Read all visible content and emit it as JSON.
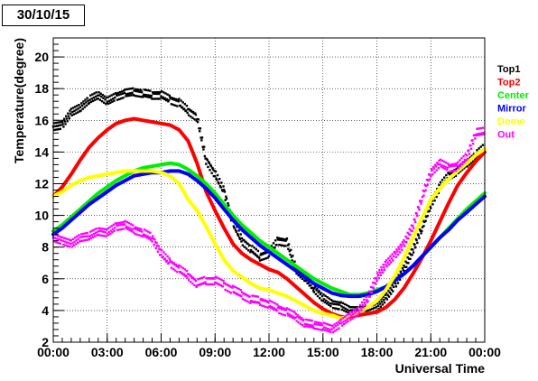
{
  "chart_data": {
    "type": "scatter",
    "title": "30/10/15",
    "xlabel": "Universal Time",
    "ylabel": "Temperature(degree)",
    "xlim": [
      0,
      24
    ],
    "ylim": [
      2,
      21.2
    ],
    "grid": true,
    "legend_position": "right",
    "x_tick_values": [
      0,
      3,
      6,
      9,
      12,
      15,
      18,
      21,
      24
    ],
    "x_tick_labels": [
      "00:00",
      "03:00",
      "06:00",
      "09:00",
      "12:00",
      "15:00",
      "18:00",
      "21:00",
      "00:00"
    ],
    "y_tick_values": [
      2,
      4,
      6,
      8,
      10,
      12,
      14,
      16,
      18,
      20
    ],
    "y_tick_labels": [
      "2",
      "4",
      "6",
      "8",
      "10",
      "12",
      "14",
      "16",
      "18",
      "20"
    ],
    "series": [
      {
        "name": "Top1",
        "color": "#000000",
        "style": "points",
        "points": [
          [
            0,
            15.6
          ],
          [
            0.5,
            15.7
          ],
          [
            1,
            16.5
          ],
          [
            1.5,
            16.8
          ],
          [
            2,
            17.3
          ],
          [
            2.5,
            17.6
          ],
          [
            3,
            17.2
          ],
          [
            3.5,
            17.5
          ],
          [
            4,
            17.7
          ],
          [
            4.5,
            17.8
          ],
          [
            5,
            17.7
          ],
          [
            5.5,
            17.6
          ],
          [
            6,
            17.6
          ],
          [
            6.5,
            17.3
          ],
          [
            7,
            17.1
          ],
          [
            7.5,
            16.6
          ],
          [
            8,
            16.2
          ],
          [
            8.5,
            13.5
          ],
          [
            9,
            12.6
          ],
          [
            9.5,
            11.5
          ],
          [
            10,
            9.5
          ],
          [
            10.5,
            8.4
          ],
          [
            11,
            7.9
          ],
          [
            11.5,
            7.4
          ],
          [
            12,
            7.6
          ],
          [
            12.5,
            8.4
          ],
          [
            13,
            8.3
          ],
          [
            13.5,
            6.6
          ],
          [
            14,
            6.1
          ],
          [
            14.5,
            5.4
          ],
          [
            15,
            4.8
          ],
          [
            15.5,
            4.4
          ],
          [
            16,
            4.3
          ],
          [
            16.5,
            4.0
          ],
          [
            17,
            4.0
          ],
          [
            17.5,
            4.0
          ],
          [
            18,
            4.2
          ],
          [
            18.5,
            4.8
          ],
          [
            19,
            5.6
          ],
          [
            19.5,
            6.6
          ],
          [
            20,
            7.8
          ],
          [
            20.5,
            9.2
          ],
          [
            21,
            10.7
          ],
          [
            21.5,
            11.8
          ],
          [
            22,
            12.5
          ],
          [
            22.5,
            12.8
          ],
          [
            23,
            13.3
          ],
          [
            23.5,
            13.8
          ],
          [
            24,
            14.3
          ]
        ]
      },
      {
        "name": "Top2",
        "color": "#ff0000",
        "style": "line",
        "points": [
          [
            0,
            11.2
          ],
          [
            0.5,
            11.8
          ],
          [
            1,
            12.6
          ],
          [
            1.5,
            13.5
          ],
          [
            2,
            14.3
          ],
          [
            2.5,
            14.9
          ],
          [
            3,
            15.4
          ],
          [
            3.5,
            15.8
          ],
          [
            4,
            16.0
          ],
          [
            4.5,
            16.1
          ],
          [
            5,
            16.0
          ],
          [
            5.5,
            15.9
          ],
          [
            6,
            15.8
          ],
          [
            6.5,
            15.7
          ],
          [
            7,
            15.4
          ],
          [
            7.5,
            14.7
          ],
          [
            8,
            13.3
          ],
          [
            8.5,
            11.5
          ],
          [
            9,
            10.3
          ],
          [
            9.5,
            9.2
          ],
          [
            10,
            8.2
          ],
          [
            10.5,
            7.6
          ],
          [
            11,
            7.2
          ],
          [
            11.5,
            6.9
          ],
          [
            12,
            6.6
          ],
          [
            12.5,
            6.4
          ],
          [
            13,
            6.0
          ],
          [
            13.5,
            5.5
          ],
          [
            14,
            5.0
          ],
          [
            14.5,
            4.5
          ],
          [
            15,
            4.1
          ],
          [
            15.5,
            3.8
          ],
          [
            16,
            3.6
          ],
          [
            16.5,
            3.6
          ],
          [
            17,
            3.7
          ],
          [
            17.5,
            3.8
          ],
          [
            18,
            3.9
          ],
          [
            18.5,
            4.2
          ],
          [
            19,
            4.7
          ],
          [
            19.5,
            5.4
          ],
          [
            20,
            6.3
          ],
          [
            20.5,
            7.3
          ],
          [
            21,
            8.4
          ],
          [
            21.5,
            9.6
          ],
          [
            22,
            10.8
          ],
          [
            22.5,
            11.9
          ],
          [
            23,
            12.7
          ],
          [
            23.5,
            13.4
          ],
          [
            24,
            14.0
          ]
        ]
      },
      {
        "name": "Center",
        "color": "#00ee00",
        "style": "line",
        "points": [
          [
            0,
            9.0
          ],
          [
            0.5,
            9.4
          ],
          [
            1,
            9.9
          ],
          [
            1.5,
            10.4
          ],
          [
            2,
            10.9
          ],
          [
            2.5,
            11.4
          ],
          [
            3,
            11.8
          ],
          [
            3.5,
            12.2
          ],
          [
            4,
            12.5
          ],
          [
            4.5,
            12.8
          ],
          [
            5,
            13.0
          ],
          [
            5.5,
            13.1
          ],
          [
            6,
            13.2
          ],
          [
            6.5,
            13.3
          ],
          [
            7,
            13.2
          ],
          [
            7.5,
            12.9
          ],
          [
            8,
            12.5
          ],
          [
            8.5,
            12.0
          ],
          [
            9,
            11.4
          ],
          [
            9.5,
            10.7
          ],
          [
            10,
            10.0
          ],
          [
            10.5,
            9.4
          ],
          [
            11,
            8.9
          ],
          [
            11.5,
            8.4
          ],
          [
            12,
            8.0
          ],
          [
            12.5,
            7.6
          ],
          [
            13,
            7.2
          ],
          [
            13.5,
            6.8
          ],
          [
            14,
            6.4
          ],
          [
            14.5,
            6.0
          ],
          [
            15,
            5.7
          ],
          [
            15.5,
            5.4
          ],
          [
            16,
            5.2
          ],
          [
            16.5,
            5.0
          ],
          [
            17,
            5.0
          ],
          [
            17.5,
            5.1
          ],
          [
            18,
            5.3
          ],
          [
            18.5,
            5.5
          ],
          [
            19,
            5.9
          ],
          [
            19.5,
            6.3
          ],
          [
            20,
            6.8
          ],
          [
            20.5,
            7.4
          ],
          [
            21,
            8.0
          ],
          [
            21.5,
            8.6
          ],
          [
            22,
            9.2
          ],
          [
            22.5,
            9.8
          ],
          [
            23,
            10.4
          ],
          [
            23.5,
            10.9
          ],
          [
            24,
            11.4
          ]
        ]
      },
      {
        "name": "Mirror",
        "color": "#0000ff",
        "style": "line",
        "points": [
          [
            0,
            8.8
          ],
          [
            0.5,
            9.2
          ],
          [
            1,
            9.7
          ],
          [
            1.5,
            10.2
          ],
          [
            2,
            10.7
          ],
          [
            2.5,
            11.1
          ],
          [
            3,
            11.5
          ],
          [
            3.5,
            11.9
          ],
          [
            4,
            12.2
          ],
          [
            4.5,
            12.5
          ],
          [
            5,
            12.6
          ],
          [
            5.5,
            12.7
          ],
          [
            6,
            12.7
          ],
          [
            6.5,
            12.8
          ],
          [
            7,
            12.8
          ],
          [
            7.5,
            12.6
          ],
          [
            8,
            12.2
          ],
          [
            8.5,
            11.7
          ],
          [
            9,
            11.1
          ],
          [
            9.5,
            10.4
          ],
          [
            10,
            9.7
          ],
          [
            10.5,
            9.1
          ],
          [
            11,
            8.6
          ],
          [
            11.5,
            8.1
          ],
          [
            12,
            7.7
          ],
          [
            12.5,
            7.3
          ],
          [
            13,
            6.9
          ],
          [
            13.5,
            6.5
          ],
          [
            14,
            6.1
          ],
          [
            14.5,
            5.7
          ],
          [
            15,
            5.4
          ],
          [
            15.5,
            5.1
          ],
          [
            16,
            4.95
          ],
          [
            16.5,
            4.9
          ],
          [
            17,
            4.9
          ],
          [
            17.5,
            5.0
          ],
          [
            18,
            5.2
          ],
          [
            18.5,
            5.5
          ],
          [
            19,
            5.9
          ],
          [
            19.5,
            6.3
          ],
          [
            20,
            6.8
          ],
          [
            20.5,
            7.4
          ],
          [
            21,
            8.0
          ],
          [
            21.5,
            8.6
          ],
          [
            22,
            9.1
          ],
          [
            22.5,
            9.7
          ],
          [
            23,
            10.2
          ],
          [
            23.5,
            10.7
          ],
          [
            24,
            11.2
          ]
        ]
      },
      {
        "name": "Dome",
        "color": "#ffff00",
        "style": "line",
        "points": [
          [
            0,
            11.2
          ],
          [
            0.5,
            11.5
          ],
          [
            1,
            11.9
          ],
          [
            1.5,
            12.2
          ],
          [
            2,
            12.4
          ],
          [
            2.5,
            12.5
          ],
          [
            3,
            12.6
          ],
          [
            3.5,
            12.7
          ],
          [
            4,
            12.8
          ],
          [
            4.5,
            12.8
          ],
          [
            5,
            12.8
          ],
          [
            5.5,
            12.8
          ],
          [
            6,
            12.7
          ],
          [
            6.5,
            12.5
          ],
          [
            7,
            12.0
          ],
          [
            7.5,
            11.0
          ],
          [
            8,
            10.3
          ],
          [
            8.5,
            9.3
          ],
          [
            9,
            8.2
          ],
          [
            9.5,
            7.2
          ],
          [
            10,
            6.5
          ],
          [
            10.5,
            6.1
          ],
          [
            11,
            5.7
          ],
          [
            11.5,
            5.4
          ],
          [
            12,
            5.3
          ],
          [
            12.5,
            5.1
          ],
          [
            13,
            4.9
          ],
          [
            13.5,
            4.6
          ],
          [
            14,
            4.3
          ],
          [
            14.5,
            4.0
          ],
          [
            15,
            3.8
          ],
          [
            15.5,
            3.7
          ],
          [
            16,
            3.5
          ],
          [
            16.5,
            3.7
          ],
          [
            17,
            3.9
          ],
          [
            17.5,
            4.2
          ],
          [
            18,
            4.6
          ],
          [
            18.5,
            5.3
          ],
          [
            19,
            6.2
          ],
          [
            19.5,
            7.3
          ],
          [
            20,
            8.6
          ],
          [
            20.5,
            9.8
          ],
          [
            21,
            11.0
          ],
          [
            21.5,
            11.7
          ],
          [
            22,
            12.3
          ],
          [
            22.5,
            12.8
          ],
          [
            23,
            13.3
          ],
          [
            23.5,
            13.8
          ],
          [
            24,
            14.2
          ]
        ]
      },
      {
        "name": "Out",
        "color": "#ff00ff",
        "style": "points",
        "points": [
          [
            0,
            8.6
          ],
          [
            0.5,
            8.4
          ],
          [
            1,
            8.2
          ],
          [
            1.5,
            8.6
          ],
          [
            2,
            8.7
          ],
          [
            2.5,
            9.0
          ],
          [
            3,
            8.9
          ],
          [
            3.5,
            9.3
          ],
          [
            4,
            9.4
          ],
          [
            4.5,
            9.1
          ],
          [
            5,
            8.9
          ],
          [
            5.5,
            8.6
          ],
          [
            6,
            7.6
          ],
          [
            6.5,
            7.0
          ],
          [
            7,
            6.6
          ],
          [
            7.5,
            6.2
          ],
          [
            8,
            5.7
          ],
          [
            8.5,
            5.9
          ],
          [
            9,
            5.9
          ],
          [
            9.5,
            5.6
          ],
          [
            10,
            5.3
          ],
          [
            10.5,
            5.0
          ],
          [
            11,
            4.7
          ],
          [
            11.5,
            4.6
          ],
          [
            12,
            4.4
          ],
          [
            12.5,
            4.1
          ],
          [
            13,
            3.9
          ],
          [
            13.5,
            3.6
          ],
          [
            14,
            3.2
          ],
          [
            14.5,
            3.1
          ],
          [
            15,
            3.0
          ],
          [
            15.5,
            2.8
          ],
          [
            16,
            3.2
          ],
          [
            16.5,
            3.6
          ],
          [
            17,
            4.0
          ],
          [
            17.5,
            4.8
          ],
          [
            18,
            6.1
          ],
          [
            18.5,
            6.9
          ],
          [
            19,
            7.5
          ],
          [
            19.5,
            8.2
          ],
          [
            20,
            9.3
          ],
          [
            20.5,
            11.1
          ],
          [
            21,
            12.7
          ],
          [
            21.5,
            13.3
          ],
          [
            22,
            13.0
          ],
          [
            22.5,
            13.1
          ],
          [
            23,
            13.7
          ],
          [
            23.5,
            15.2
          ],
          [
            24,
            15.3
          ]
        ]
      }
    ]
  }
}
